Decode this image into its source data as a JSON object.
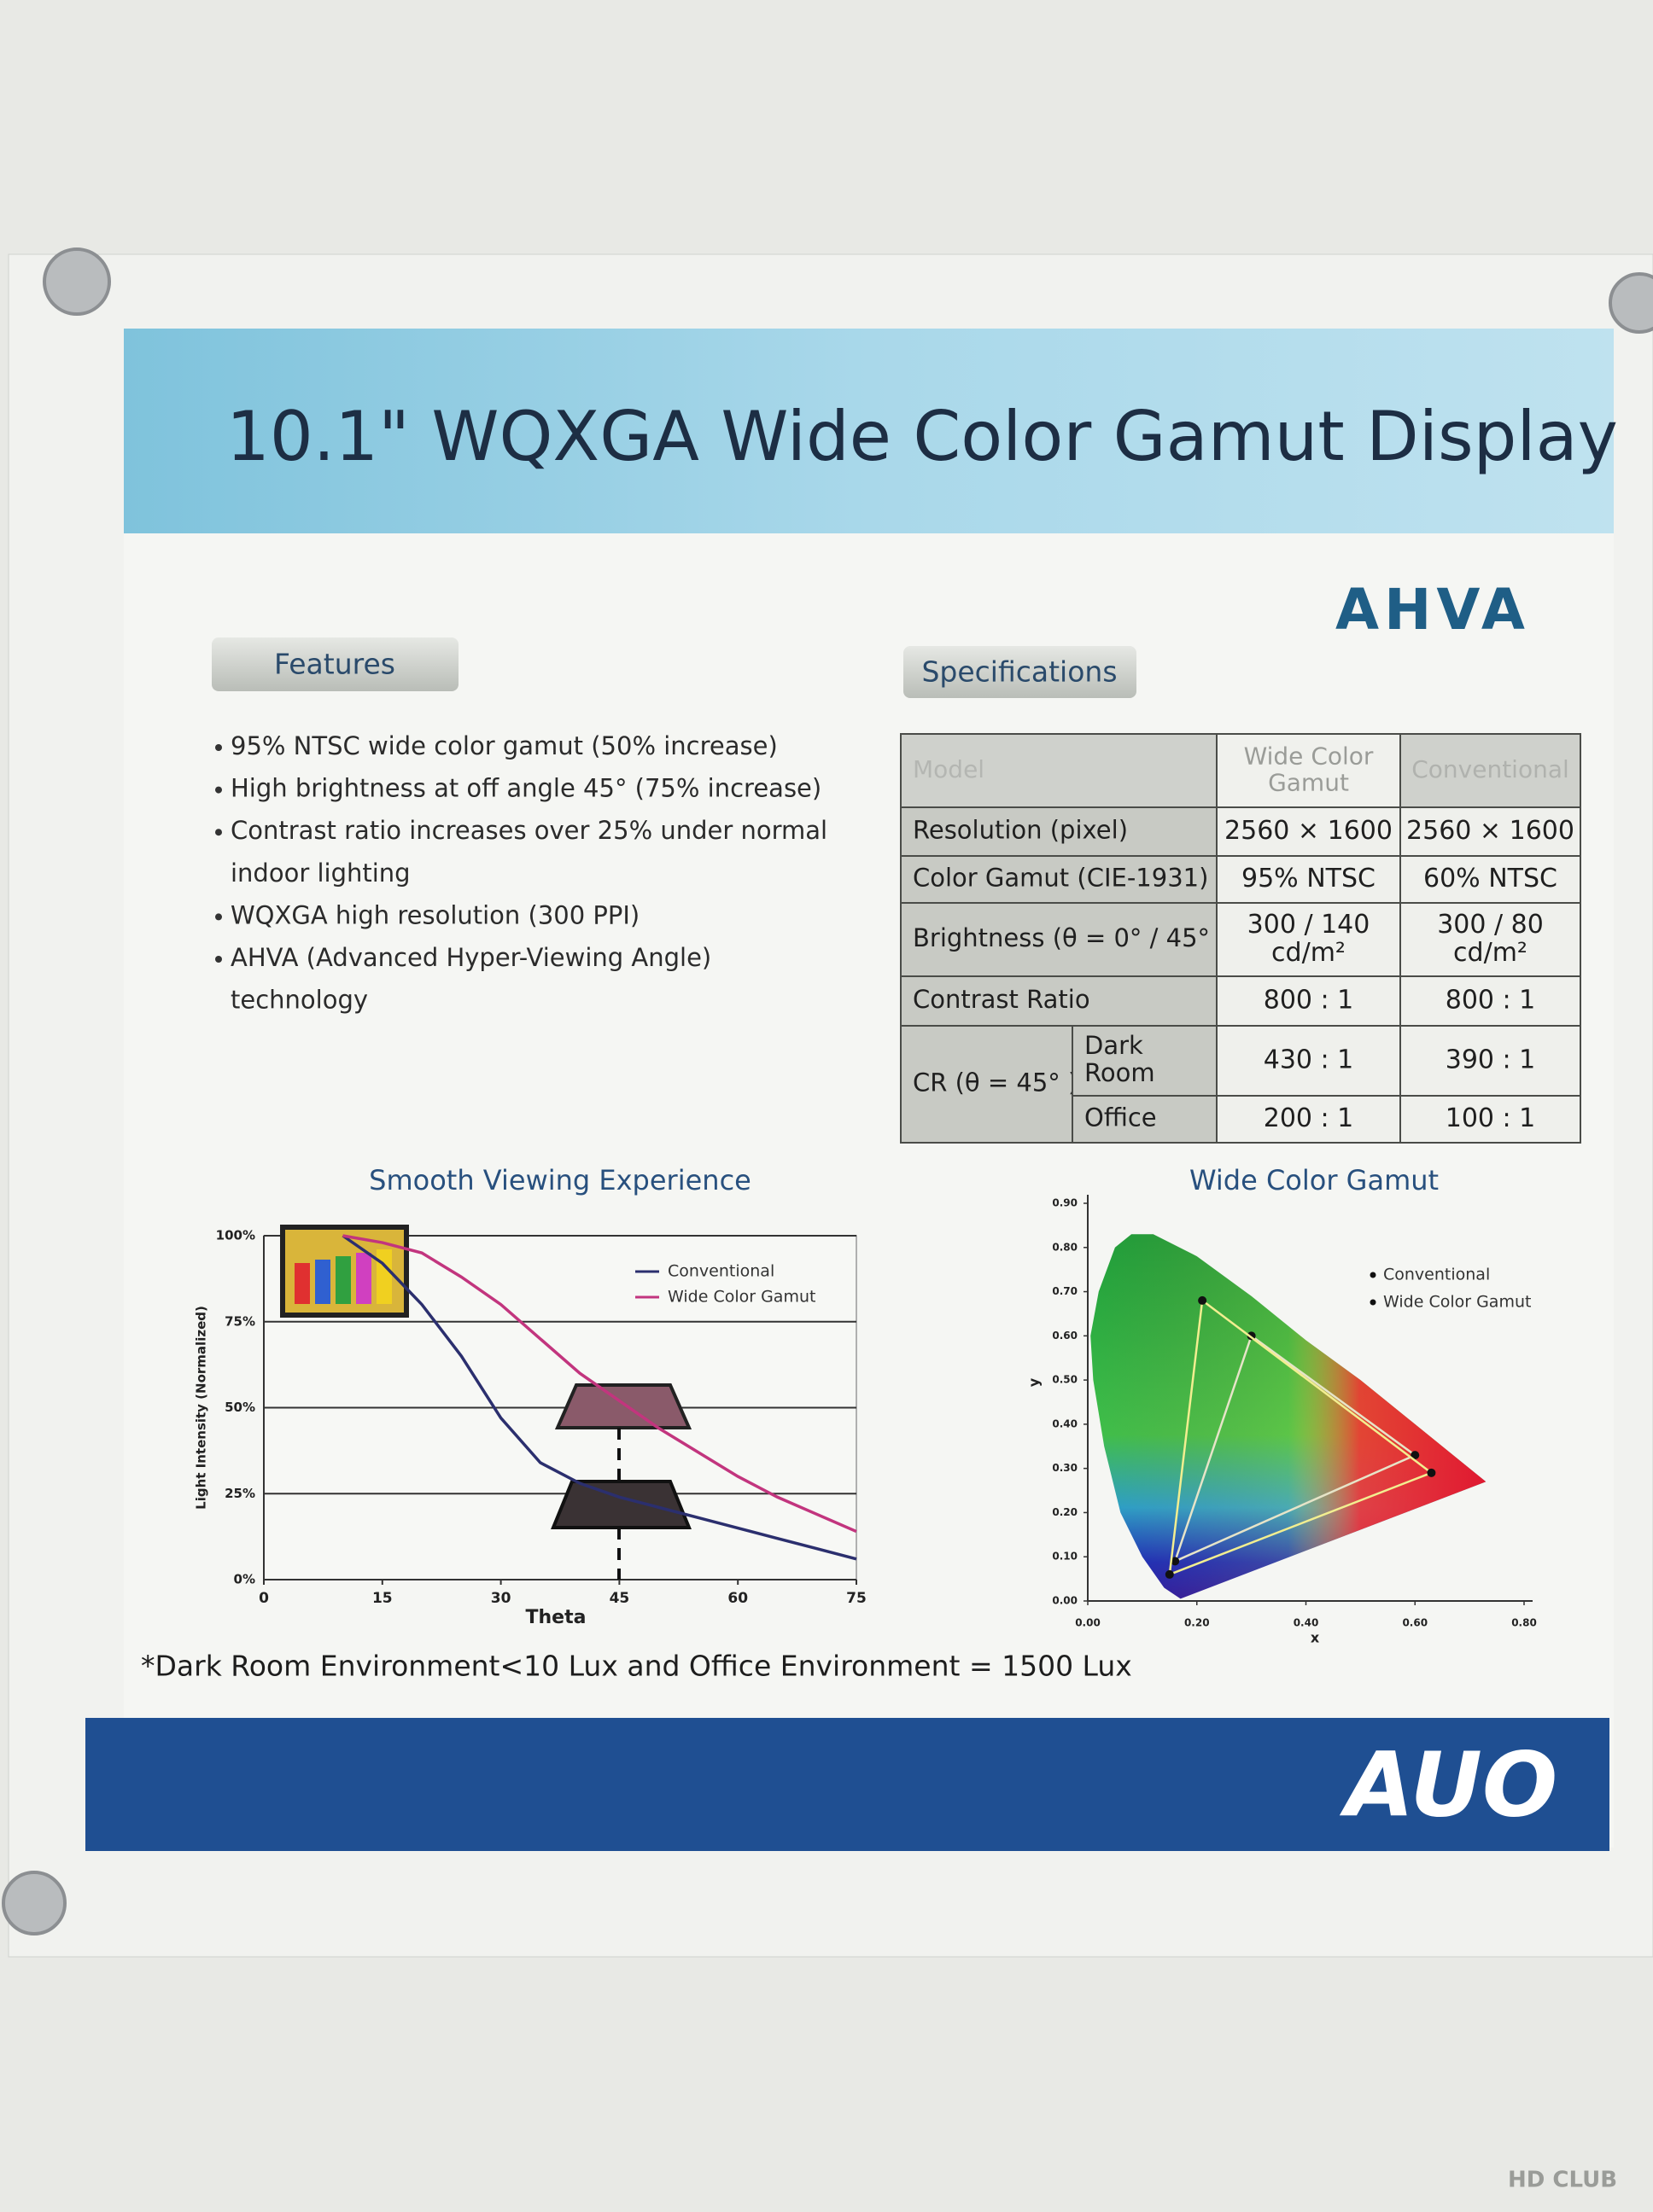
{
  "header": {
    "title": "10.1\" WQXGA Wide Color Gamut Display",
    "logo": "AHVA"
  },
  "features": {
    "label": "Features",
    "items": [
      [
        "95% NTSC wide color gamut (50% increase)"
      ],
      [
        "High brightness at off angle 45° (75% increase)"
      ],
      [
        "Contrast ratio increases over 25% under normal",
        "indoor lighting"
      ],
      [
        "WQXGA high resolution (300 PPI)"
      ],
      [
        "AHVA (Advanced Hyper-Viewing Angle)",
        "technology"
      ]
    ]
  },
  "specifications": {
    "label": "Specifications",
    "header": [
      "Model",
      [
        "Wide Color",
        "Gamut"
      ],
      "Conventional"
    ],
    "rows": [
      [
        "Resolution (pixel)",
        "2560 × 1600",
        "2560 × 1600"
      ],
      [
        "Color Gamut (CIE-1931)",
        "95% NTSC",
        "60% NTSC"
      ],
      [
        "Brightness (θ = 0° / 45° )",
        [
          "300 / 140",
          "cd/m²"
        ],
        [
          "300 / 80",
          "cd/m²"
        ]
      ],
      [
        "Contrast Ratio",
        "800 : 1",
        "800 : 1"
      ]
    ],
    "cr": {
      "label": "CR (θ = 45° )",
      "rows": [
        [
          [
            "Dark",
            "Room"
          ],
          "430 : 1",
          "390 : 1"
        ],
        [
          "Office",
          "200 : 1",
          "100 : 1"
        ]
      ]
    }
  },
  "chart_data": [
    {
      "type": "line",
      "title": "Smooth Viewing Experience",
      "x_label": "Theta",
      "y_label": "Light Intensity (Normalized)",
      "x": [
        10,
        15,
        20,
        25,
        30,
        35,
        40,
        45,
        50,
        55,
        60,
        65,
        70,
        75
      ],
      "xlim": [
        0,
        75
      ],
      "xticks": [
        0,
        15,
        30,
        45,
        60,
        75
      ],
      "ylim": [
        0,
        100
      ],
      "yticks": [
        {
          "value": 0,
          "label": "0%"
        },
        {
          "value": 25,
          "label": "25%"
        },
        {
          "value": 50,
          "label": "50%"
        },
        {
          "value": 75,
          "label": "75%"
        },
        {
          "value": 100,
          "label": "100%"
        }
      ],
      "grid": true,
      "series": [
        {
          "name": "Conventional",
          "color": "#2b2f6e",
          "values": [
            100,
            92,
            80,
            65,
            47,
            34,
            28,
            24,
            21,
            18,
            15,
            12,
            9,
            6
          ]
        },
        {
          "name": "Wide Color Gamut",
          "color": "#c2357e",
          "values": [
            100,
            98,
            95,
            88,
            80,
            70,
            60,
            52,
            44,
            37,
            30,
            24,
            19,
            14
          ]
        }
      ]
    },
    {
      "type": "scatter",
      "title": "Wide Color Gamut",
      "x_label": "x",
      "y_label": "y",
      "xlim": [
        0,
        0.8
      ],
      "xticks": [
        {
          "value": 0,
          "label": "0.00"
        },
        {
          "value": 0.2,
          "label": "0.20"
        },
        {
          "value": 0.4,
          "label": "0.40"
        },
        {
          "value": 0.6,
          "label": "0.60"
        },
        {
          "value": 0.8,
          "label": "0.80"
        }
      ],
      "ylim": [
        0,
        0.9
      ],
      "yticks": [
        {
          "value": 0,
          "label": "0.00"
        },
        {
          "value": 0.1,
          "label": "0.10"
        },
        {
          "value": 0.2,
          "label": "0.20"
        },
        {
          "value": 0.3,
          "label": "0.30"
        },
        {
          "value": 0.4,
          "label": "0.40"
        },
        {
          "value": 0.5,
          "label": "0.50"
        },
        {
          "value": 0.6,
          "label": "0.60"
        },
        {
          "value": 0.7,
          "label": "0.70"
        },
        {
          "value": 0.8,
          "label": "0.80"
        },
        {
          "value": 0.9,
          "label": "0.90"
        }
      ],
      "series": [
        {
          "name": "Conventional",
          "color": "#111111",
          "x": [
            0.3,
            0.6,
            0.16
          ],
          "y": [
            0.6,
            0.33,
            0.09
          ]
        },
        {
          "name": "Wide Color Gamut",
          "color": "#111111",
          "x": [
            0.21,
            0.63,
            0.15
          ],
          "y": [
            0.68,
            0.29,
            0.06
          ]
        }
      ]
    }
  ],
  "footnote": "*Dark Room Environment<10 Lux and Office Environment = 1500 Lux",
  "footer": {
    "logo": "AUO"
  },
  "watermark": "HD CLUB"
}
